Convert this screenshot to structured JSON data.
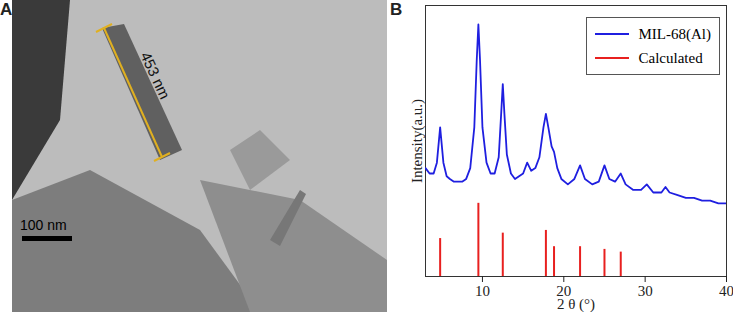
{
  "image_panel": {
    "panel_label": "A",
    "measurement": "453 nm",
    "scale_bar": "100 nm"
  },
  "chart_data": {
    "type": "line",
    "panel_label": "B",
    "x_label": "2 θ (°)",
    "y_label": "Intensity(a.u.)",
    "xlim": [
      3,
      40
    ],
    "xticks": [
      10,
      20,
      30,
      40
    ],
    "ylim": [
      0,
      100
    ],
    "yticks": [],
    "tick_labels": "x",
    "legend": "top-right",
    "series": [
      {
        "name": "MIL-68(Al)",
        "type": "line",
        "color": "#1f1fe0",
        "x": [
          3,
          3.5,
          4,
          4.4,
          4.8,
          5.2,
          5.6,
          6,
          6.5,
          7,
          7.5,
          8,
          8.5,
          9,
          9.3,
          9.5,
          9.7,
          10,
          10.5,
          11,
          11.5,
          12,
          12.3,
          12.5,
          12.7,
          13,
          13.5,
          14,
          14.5,
          15,
          15.5,
          16,
          16.5,
          17,
          17.5,
          17.8,
          18.1,
          18.5,
          18.8,
          19.2,
          19.7,
          20.5,
          21.3,
          22,
          22.6,
          23.5,
          24.3,
          25,
          25.6,
          26.3,
          27,
          27.6,
          28.5,
          29.5,
          30.2,
          31,
          32,
          32.5,
          33,
          34,
          35,
          36,
          37,
          38,
          39,
          40
        ],
        "values": [
          40,
          38,
          38,
          42,
          55,
          42,
          37,
          36,
          35,
          35,
          35,
          36,
          40,
          55,
          80,
          93,
          80,
          55,
          42,
          38,
          38,
          44,
          60,
          71,
          60,
          45,
          38,
          36,
          37,
          38,
          42,
          39,
          40,
          44,
          55,
          60,
          55,
          48,
          46,
          40,
          36,
          34,
          36,
          41,
          36,
          34,
          35,
          41,
          36,
          35,
          38,
          34,
          32,
          32,
          34,
          31,
          31,
          33,
          31,
          30,
          29,
          29,
          28,
          28,
          27,
          27
        ]
      },
      {
        "name": "Calculated",
        "type": "bar",
        "color": "#e8201f",
        "x": [
          4.8,
          9.5,
          12.5,
          17.8,
          18.8,
          22,
          25,
          27
        ],
        "values": [
          14,
          27,
          16,
          17,
          11,
          11,
          10,
          9
        ]
      }
    ]
  }
}
